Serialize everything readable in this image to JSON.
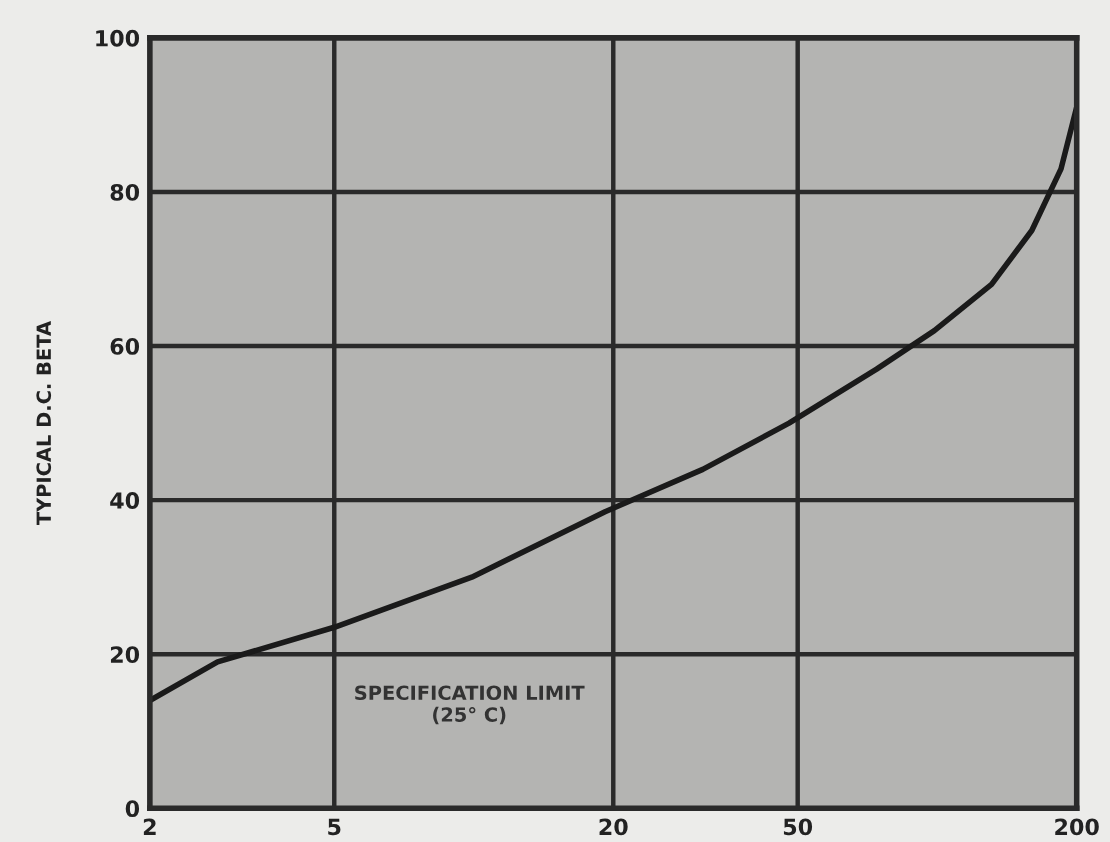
{
  "chart_data": {
    "type": "line",
    "ylabel": "TYPICAL D.C. BETA",
    "x": [
      2.0,
      2.8,
      5.0,
      9.9,
      19.2,
      31.2,
      47.9,
      74.0,
      98.6,
      131,
      160,
      185,
      200
    ],
    "series": [
      {
        "color": "#1a1a1a",
        "values": [
          14,
          19,
          23.5,
          30,
          38.5,
          44,
          50,
          57,
          62,
          68,
          75,
          83,
          91
        ]
      }
    ],
    "log": "x",
    "xlim": [
      2,
      200
    ],
    "xticks": [
      2,
      5,
      20,
      50,
      200
    ],
    "ylim": [
      0,
      100
    ],
    "yticks": [
      0,
      20,
      40,
      60,
      80,
      100
    ],
    "grid": true,
    "marker": "none",
    "line_style": "solid",
    "annotations": [
      "SPECIFICATION LIMIT\n(25° C)"
    ]
  }
}
